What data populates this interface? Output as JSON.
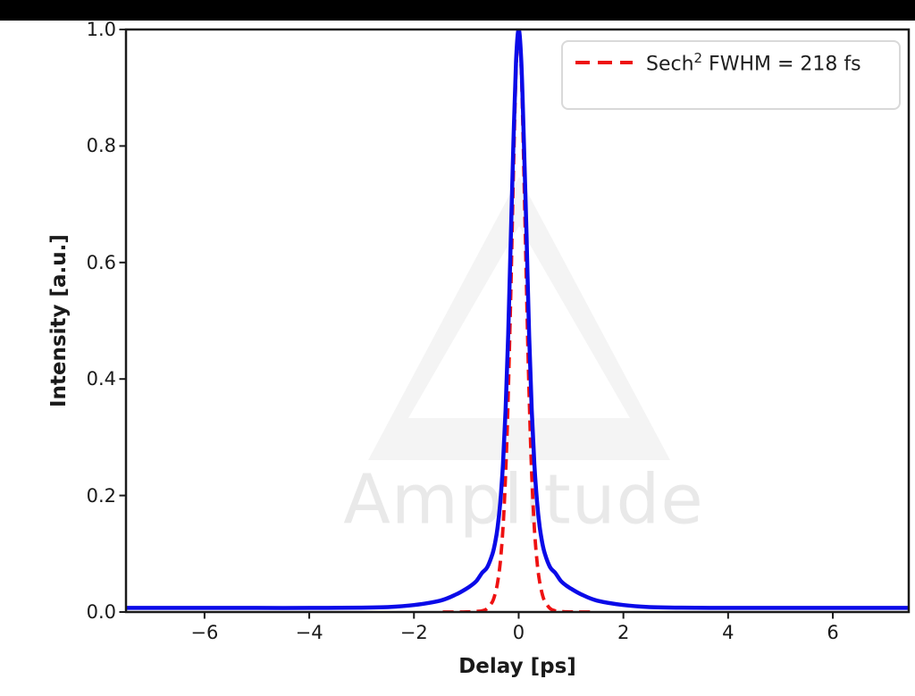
{
  "page": {
    "top_bar_color": "#000000",
    "background": "#ffffff"
  },
  "chart_data": {
    "type": "line",
    "title": "",
    "xlabel": "Delay [ps]",
    "ylabel": "Intensity [a.u.]",
    "xlim": [
      -7.5,
      7.45
    ],
    "ylim": [
      0,
      1.0
    ],
    "grid": false,
    "axis_color": "#1a1a1a",
    "tick_label_color": "#1a1a1a",
    "x_ticks": [
      -6,
      -4,
      -2,
      0,
      2,
      4,
      6
    ],
    "x_tick_labels": [
      "−6",
      "−4",
      "−2",
      "0",
      "2",
      "4",
      "6"
    ],
    "y_ticks": [
      0.0,
      0.2,
      0.4,
      0.6,
      0.8,
      1.0
    ],
    "y_tick_labels": [
      "0.0",
      "0.2",
      "0.4",
      "0.6",
      "0.8",
      "1.0"
    ],
    "legend": {
      "position": "upper right",
      "border_color": "#d9d9d9",
      "entries": [
        {
          "label": "Sech² FWHM = 218 fs",
          "label_base": "Sech",
          "label_sup": "2",
          "label_rest": " FWHM = 218 fs",
          "line_color": "#ee1111",
          "line_style": "dashed"
        }
      ]
    },
    "watermark": {
      "text": "Amplitude",
      "text_color": "#e9e9e9",
      "logo_color": "#f4f4f4",
      "logo": "triangle-outline"
    },
    "series": [
      {
        "name": "sech2-fit",
        "legend": "Sech² FWHM = 218 fs",
        "fwhm_fs": 218,
        "color": "#ee1111",
        "style": "dashed",
        "line_width": 3.8,
        "dash": [
          12,
          7
        ],
        "points": [
          [
            -1.45,
            0
          ],
          [
            -1.2,
            0
          ],
          [
            -1.0,
            0.0001
          ],
          [
            -0.8,
            0.001
          ],
          [
            -0.7,
            0.002
          ],
          [
            -0.6,
            0.006
          ],
          [
            -0.5,
            0.018
          ],
          [
            -0.45,
            0.031
          ],
          [
            -0.4,
            0.052
          ],
          [
            -0.35,
            0.087
          ],
          [
            -0.3,
            0.144
          ],
          [
            -0.25,
            0.235
          ],
          [
            -0.2,
            0.37
          ],
          [
            -0.15,
            0.551
          ],
          [
            -0.1,
            0.756
          ],
          [
            -0.05,
            0.93
          ],
          [
            0,
            1.0
          ],
          [
            0.05,
            0.93
          ],
          [
            0.1,
            0.756
          ],
          [
            0.15,
            0.551
          ],
          [
            0.2,
            0.37
          ],
          [
            0.25,
            0.235
          ],
          [
            0.3,
            0.144
          ],
          [
            0.35,
            0.087
          ],
          [
            0.4,
            0.052
          ],
          [
            0.45,
            0.031
          ],
          [
            0.5,
            0.018
          ],
          [
            0.6,
            0.006
          ],
          [
            0.7,
            0.002
          ],
          [
            0.8,
            0.001
          ],
          [
            1.0,
            0.0001
          ],
          [
            1.2,
            0
          ],
          [
            1.45,
            0
          ]
        ]
      },
      {
        "name": "autocorrelation-measured",
        "color": "#0a0ae8",
        "style": "solid",
        "line_width": 4.5,
        "points": [
          [
            -7.5,
            0.007
          ],
          [
            -6,
            0.007
          ],
          [
            -5,
            0.007
          ],
          [
            -4,
            0.007
          ],
          [
            -3,
            0.0075
          ],
          [
            -2.5,
            0.0085
          ],
          [
            -2,
            0.012
          ],
          [
            -1.5,
            0.0195
          ],
          [
            -1.2,
            0.03
          ],
          [
            -1.0,
            0.04
          ],
          [
            -0.9,
            0.046
          ],
          [
            -0.8,
            0.054
          ],
          [
            -0.7,
            0.067
          ],
          [
            -0.6,
            0.077
          ],
          [
            -0.5,
            0.1
          ],
          [
            -0.45,
            0.119
          ],
          [
            -0.4,
            0.147
          ],
          [
            -0.35,
            0.19
          ],
          [
            -0.3,
            0.254
          ],
          [
            -0.25,
            0.346
          ],
          [
            -0.2,
            0.474
          ],
          [
            -0.15,
            0.645
          ],
          [
            -0.1,
            0.807
          ],
          [
            -0.05,
            0.945
          ],
          [
            0,
            1.0
          ],
          [
            0.05,
            0.945
          ],
          [
            0.1,
            0.807
          ],
          [
            0.15,
            0.645
          ],
          [
            0.2,
            0.474
          ],
          [
            0.25,
            0.346
          ],
          [
            0.3,
            0.254
          ],
          [
            0.35,
            0.19
          ],
          [
            0.4,
            0.147
          ],
          [
            0.45,
            0.119
          ],
          [
            0.5,
            0.1
          ],
          [
            0.6,
            0.077
          ],
          [
            0.7,
            0.067
          ],
          [
            0.8,
            0.054
          ],
          [
            0.9,
            0.046
          ],
          [
            1.0,
            0.04
          ],
          [
            1.2,
            0.03
          ],
          [
            1.5,
            0.0195
          ],
          [
            2,
            0.012
          ],
          [
            2.5,
            0.0085
          ],
          [
            3,
            0.0075
          ],
          [
            4,
            0.007
          ],
          [
            5,
            0.007
          ],
          [
            6,
            0.007
          ],
          [
            7.5,
            0.007
          ]
        ]
      }
    ]
  }
}
